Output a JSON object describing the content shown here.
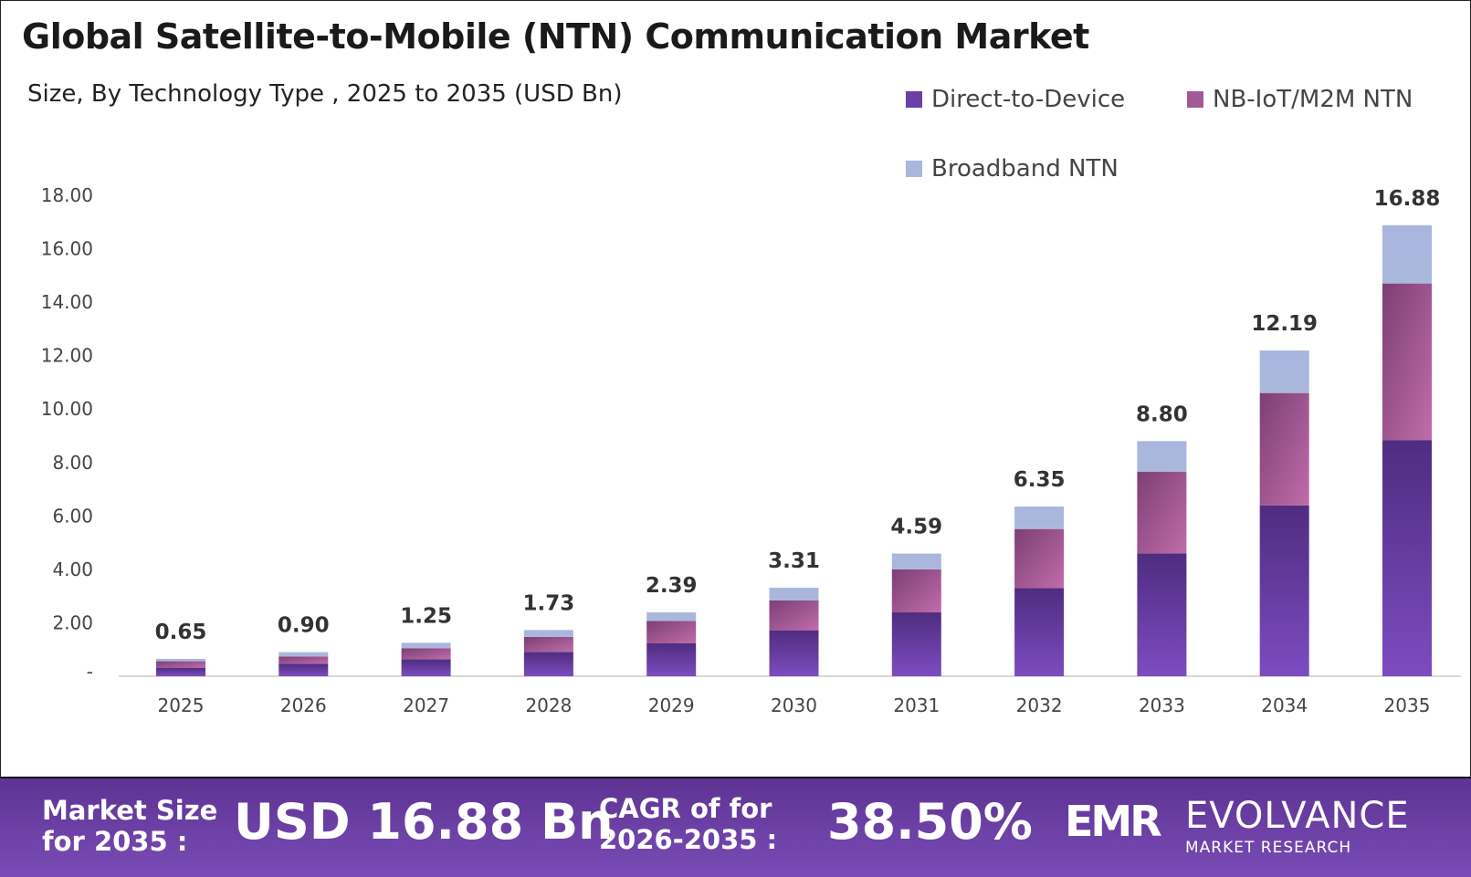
{
  "header": {
    "title": "Global Satellite-to-Mobile (NTN) Communication Market",
    "subtitle": "Size, By Technology  Type , 2025 to 2035 (USD Bn)"
  },
  "chart_data": {
    "type": "bar",
    "stacked": true,
    "categories": [
      "2025",
      "2026",
      "2027",
      "2028",
      "2029",
      "2030",
      "2031",
      "2032",
      "2033",
      "2034",
      "2035"
    ],
    "series": [
      {
        "name": "Direct-to-Device",
        "color": "#6a3fa6",
        "values": [
          0.32,
          0.46,
          0.63,
          0.91,
          1.23,
          1.72,
          2.39,
          3.3,
          4.6,
          6.39,
          8.84
        ]
      },
      {
        "name": "NB-IoT/M2M NTN",
        "color": "#a05a98",
        "values": [
          0.24,
          0.28,
          0.42,
          0.56,
          0.84,
          1.12,
          1.61,
          2.21,
          3.05,
          4.21,
          5.86
        ]
      },
      {
        "name": "Broadband NTN",
        "color": "#aab7dc",
        "values": [
          0.09,
          0.16,
          0.2,
          0.26,
          0.32,
          0.47,
          0.59,
          0.84,
          1.15,
          1.59,
          2.18
        ]
      }
    ],
    "totals": [
      "0.65",
      "0.90",
      "1.25",
      "1.73",
      "2.39",
      "3.31",
      "4.59",
      "6.35",
      "8.80",
      "12.19",
      "16.88"
    ],
    "yticks": [
      "-",
      "2.00",
      "4.00",
      "6.00",
      "8.00",
      "10.00",
      "12.00",
      "14.00",
      "16.00",
      "18.00"
    ],
    "ylim": [
      0,
      18
    ],
    "grid": false,
    "legend": "top-right"
  },
  "banner": {
    "size_label_1": "Market Size",
    "size_label_2": "for 2035 :",
    "size_value": "USD 16.88 Bn",
    "cagr_label_1": "CAGR of for",
    "cagr_label_2": "2026-2035 :",
    "cagr_value": "38.50%",
    "logo_text": "EVOLVANCE",
    "logo_sub": "MARKET RESEARCH",
    "logo_mark": "EMR"
  }
}
